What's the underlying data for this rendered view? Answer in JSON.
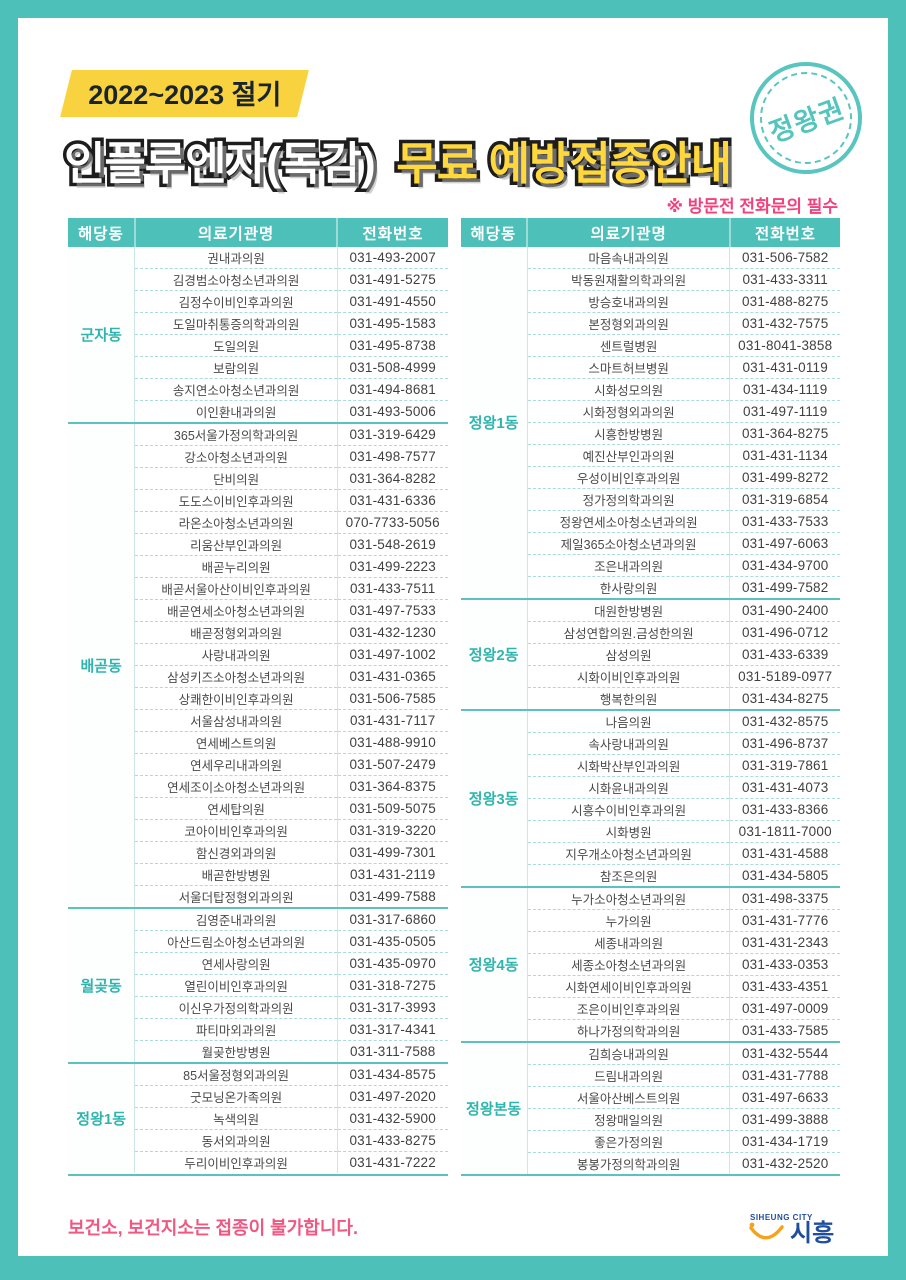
{
  "page": {
    "season_label": "2022~2023 절기",
    "title_part1": "인플루엔자(독감)",
    "title_part2": "무료 예방접종안내",
    "stamp_label": "정왕권",
    "notice": "※ 방문전 전화문의 필수",
    "footer_note": "보건소, 보건지소는 접종이 불가합니다.",
    "logo": {
      "top": "SIHEUNG CITY",
      "name": "시흥"
    }
  },
  "colors": {
    "teal": "#4CC0B9",
    "yellow_band": "#F8D33F",
    "title_yellow": "#FFD83D",
    "pink": "#F2427C",
    "district_teal": "#2FB5AE",
    "logo_blue": "#1F4E9C",
    "logo_orange": "#F5A21C"
  },
  "table_headers": [
    "해당동",
    "의료기관명",
    "전화번호"
  ],
  "left_table": [
    {
      "district": "군자동",
      "rows": [
        {
          "name": "권내과의원",
          "phone": "031-493-2007"
        },
        {
          "name": "김경범소아청소년과의원",
          "phone": "031-491-5275"
        },
        {
          "name": "김정수이비인후과의원",
          "phone": "031-491-4550"
        },
        {
          "name": "도일마취통증의학과의원",
          "phone": "031-495-1583"
        },
        {
          "name": "도일의원",
          "phone": "031-495-8738"
        },
        {
          "name": "보람의원",
          "phone": "031-508-4999"
        },
        {
          "name": "송지연소아청소년과의원",
          "phone": "031-494-8681"
        },
        {
          "name": "이인환내과의원",
          "phone": "031-493-5006"
        }
      ]
    },
    {
      "district": "배곧동",
      "rows": [
        {
          "name": "365서울가정의학과의원",
          "phone": "031-319-6429"
        },
        {
          "name": "강소아청소년과의원",
          "phone": "031-498-7577"
        },
        {
          "name": "단비의원",
          "phone": "031-364-8282"
        },
        {
          "name": "도도스이비인후과의원",
          "phone": "031-431-6336"
        },
        {
          "name": "라온소아청소년과의원",
          "phone": "070-7733-5056"
        },
        {
          "name": "리움산부인과의원",
          "phone": "031-548-2619"
        },
        {
          "name": "배곧누리의원",
          "phone": "031-499-2223"
        },
        {
          "name": "배곧서울아산이비인후과의원",
          "phone": "031-433-7511"
        },
        {
          "name": "배곧연세소아청소년과의원",
          "phone": "031-497-7533"
        },
        {
          "name": "배곧정형외과의원",
          "phone": "031-432-1230"
        },
        {
          "name": "사랑내과의원",
          "phone": "031-497-1002"
        },
        {
          "name": "삼성키즈소아청소년과의원",
          "phone": "031-431-0365"
        },
        {
          "name": "상쾌한이비인후과의원",
          "phone": "031-506-7585"
        },
        {
          "name": "서울삼성내과의원",
          "phone": "031-431-7117"
        },
        {
          "name": "연세베스트의원",
          "phone": "031-488-9910"
        },
        {
          "name": "연세우리내과의원",
          "phone": "031-507-2479"
        },
        {
          "name": "연세조이소아청소년과의원",
          "phone": "031-364-8375"
        },
        {
          "name": "연세탑의원",
          "phone": "031-509-5075"
        },
        {
          "name": "코아이비인후과의원",
          "phone": "031-319-3220"
        },
        {
          "name": "함신경외과의원",
          "phone": "031-499-7301"
        },
        {
          "name": "배곧한방병원",
          "phone": "031-431-2119"
        },
        {
          "name": "서울더탑정형외과의원",
          "phone": "031-499-7588"
        }
      ]
    },
    {
      "district": "월곶동",
      "rows": [
        {
          "name": "김영준내과의원",
          "phone": "031-317-6860"
        },
        {
          "name": "아산드림소아청소년과의원",
          "phone": "031-435-0505"
        },
        {
          "name": "연세사랑의원",
          "phone": "031-435-0970"
        },
        {
          "name": "열린이비인후과의원",
          "phone": "031-318-7275"
        },
        {
          "name": "이신우가정의학과의원",
          "phone": "031-317-3993"
        },
        {
          "name": "파티마외과의원",
          "phone": "031-317-4341"
        },
        {
          "name": "월곶한방병원",
          "phone": "031-311-7588"
        }
      ]
    },
    {
      "district": "정왕1동",
      "rows": [
        {
          "name": "85서울정형외과의원",
          "phone": "031-434-8575"
        },
        {
          "name": "굿모닝온가족의원",
          "phone": "031-497-2020"
        },
        {
          "name": "녹색의원",
          "phone": "031-432-5900"
        },
        {
          "name": "동서외과의원",
          "phone": "031-433-8275"
        },
        {
          "name": "두리이비인후과의원",
          "phone": "031-431-7222"
        }
      ]
    }
  ],
  "right_table": [
    {
      "district": "정왕1동",
      "rows": [
        {
          "name": "마음속내과의원",
          "phone": "031-506-7582"
        },
        {
          "name": "박동원재활의학과의원",
          "phone": "031-433-3311"
        },
        {
          "name": "방승호내과의원",
          "phone": "031-488-8275"
        },
        {
          "name": "본정형외과의원",
          "phone": "031-432-7575"
        },
        {
          "name": "센트럴병원",
          "phone": "031-8041-3858"
        },
        {
          "name": "스마트허브병원",
          "phone": "031-431-0119"
        },
        {
          "name": "시화성모의원",
          "phone": "031-434-1119"
        },
        {
          "name": "시화정형외과의원",
          "phone": "031-497-1119"
        },
        {
          "name": "시흥한방병원",
          "phone": "031-364-8275"
        },
        {
          "name": "예진산부인과의원",
          "phone": "031-431-1134"
        },
        {
          "name": "우성이비인후과의원",
          "phone": "031-499-8272"
        },
        {
          "name": "정가정의학과의원",
          "phone": "031-319-6854"
        },
        {
          "name": "정왕연세소아청소년과의원",
          "phone": "031-433-7533"
        },
        {
          "name": "제일365소아청소년과의원",
          "phone": "031-497-6063"
        },
        {
          "name": "조은내과의원",
          "phone": "031-434-9700"
        },
        {
          "name": "한사랑의원",
          "phone": "031-499-7582"
        }
      ]
    },
    {
      "district": "정왕2동",
      "rows": [
        {
          "name": "대원한방병원",
          "phone": "031-490-2400"
        },
        {
          "name": "삼성연합의원.금성한의원",
          "phone": "031-496-0712"
        },
        {
          "name": "삼성의원",
          "phone": "031-433-6339"
        },
        {
          "name": "시화이비인후과의원",
          "phone": "031-5189-0977"
        },
        {
          "name": "행복한의원",
          "phone": "031-434-8275"
        }
      ]
    },
    {
      "district": "정왕3동",
      "rows": [
        {
          "name": "나음의원",
          "phone": "031-432-8575"
        },
        {
          "name": "속사랑내과의원",
          "phone": "031-496-8737"
        },
        {
          "name": "시화박산부인과의원",
          "phone": "031-319-7861"
        },
        {
          "name": "시화윤내과의원",
          "phone": "031-431-4073"
        },
        {
          "name": "시흥수이비인후과의원",
          "phone": "031-433-8366"
        },
        {
          "name": "시화병원",
          "phone": "031-1811-7000"
        },
        {
          "name": "지우개소아청소년과의원",
          "phone": "031-431-4588"
        },
        {
          "name": "참조은의원",
          "phone": "031-434-5805"
        }
      ]
    },
    {
      "district": "정왕4동",
      "rows": [
        {
          "name": "누가소아청소년과의원",
          "phone": "031-498-3375"
        },
        {
          "name": "누가의원",
          "phone": "031-431-7776"
        },
        {
          "name": "세종내과의원",
          "phone": "031-431-2343"
        },
        {
          "name": "세종소아청소년과의원",
          "phone": "031-433-0353"
        },
        {
          "name": "시화연세이비인후과의원",
          "phone": "031-433-4351"
        },
        {
          "name": "조은이비인후과의원",
          "phone": "031-497-0009"
        },
        {
          "name": "하나가정의학과의원",
          "phone": "031-433-7585"
        }
      ]
    },
    {
      "district": "정왕본동",
      "rows": [
        {
          "name": "김희승내과의원",
          "phone": "031-432-5544"
        },
        {
          "name": "드림내과의원",
          "phone": "031-431-7788"
        },
        {
          "name": "서울아산베스트의원",
          "phone": "031-497-6633"
        },
        {
          "name": "정왕매일의원",
          "phone": "031-499-3888"
        },
        {
          "name": "좋은가정의원",
          "phone": "031-434-1719"
        },
        {
          "name": "봉봉가정의학과의원",
          "phone": "031-432-2520"
        }
      ]
    }
  ]
}
